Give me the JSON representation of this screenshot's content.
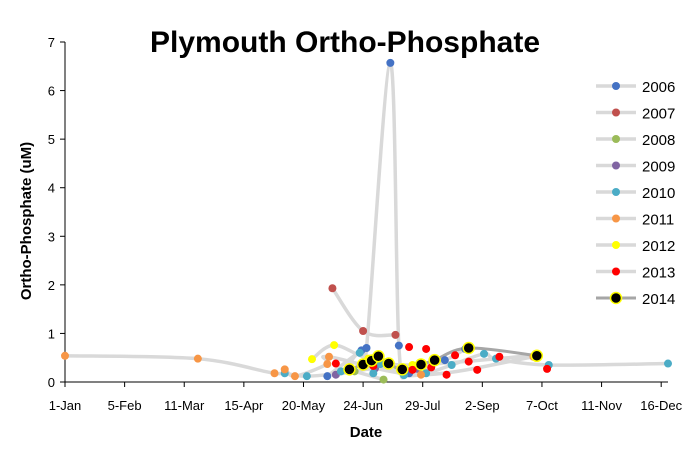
{
  "chart_data": {
    "type": "scatter",
    "title": "Plymouth Ortho-Phosphate",
    "xlabel": "Date",
    "ylabel": "Ortho-Phosphate (uM)",
    "x_axis": {
      "unit": "day-of-year",
      "range": [
        1,
        355
      ],
      "tick_values": [
        1,
        36,
        71,
        106,
        141,
        176,
        211,
        246,
        281,
        316,
        351
      ],
      "tick_labels": [
        "1-Jan",
        "5-Feb",
        "11-Mar",
        "15-Apr",
        "20-May",
        "24-Jun",
        "29-Jul",
        "2-Sep",
        "7-Oct",
        "11-Nov",
        "16-Dec"
      ]
    },
    "y_axis": {
      "range": [
        0,
        7
      ],
      "ticks": [
        0,
        1,
        2,
        3,
        4,
        5,
        6,
        7
      ]
    },
    "grid": false,
    "legend_position": "right",
    "series": [
      {
        "name": "2006",
        "color": "#4472C4",
        "line_color": "#D9D9D9",
        "points": [
          [
            155,
            0.12
          ],
          [
            175,
            0.65
          ],
          [
            178,
            0.7
          ],
          [
            192,
            6.57
          ],
          [
            197,
            0.75
          ],
          [
            203,
            0.18
          ],
          [
            224,
            0.45
          ],
          [
            236,
            0.68
          ]
        ]
      },
      {
        "name": "2007",
        "color": "#C0504D",
        "line_color": "#D9D9D9",
        "points": [
          [
            158,
            1.93
          ],
          [
            176,
            1.05
          ],
          [
            195,
            0.97
          ]
        ]
      },
      {
        "name": "2008",
        "color": "#9BBB59",
        "line_color": "#D9D9D9",
        "points": [
          [
            171,
            0.22
          ],
          [
            188,
            0.05
          ]
        ]
      },
      {
        "name": "2009",
        "color": "#8064A2",
        "line_color": "#D9D9D9",
        "points": [
          [
            160,
            0.15
          ],
          [
            183,
            0.28
          ],
          [
            208,
            0.27
          ]
        ]
      },
      {
        "name": "2010",
        "color": "#4BACC6",
        "line_color": "#D9D9D9",
        "points": [
          [
            130,
            0.18
          ],
          [
            143,
            0.12
          ],
          [
            163,
            0.22
          ],
          [
            174,
            0.6
          ],
          [
            182,
            0.18
          ],
          [
            186,
            0.37
          ],
          [
            200,
            0.14
          ],
          [
            213,
            0.18
          ],
          [
            228,
            0.35
          ],
          [
            247,
            0.58
          ],
          [
            254,
            0.48
          ],
          [
            285,
            0.35
          ],
          [
            355,
            0.38
          ]
        ]
      },
      {
        "name": "2011",
        "color": "#F79646",
        "line_color": "#D9D9D9",
        "points": [
          [
            1,
            0.54
          ],
          [
            79,
            0.48
          ],
          [
            124,
            0.18
          ],
          [
            130,
            0.26
          ],
          [
            136,
            0.12
          ],
          [
            155,
            0.37
          ],
          [
            156,
            0.52
          ],
          [
            210,
            0.15
          ],
          [
            276,
            0.52
          ]
        ]
      },
      {
        "name": "2012",
        "color": "#FFFF00",
        "line_color": "#D9D9D9",
        "points": [
          [
            146,
            0.47
          ],
          [
            159,
            0.76
          ],
          [
            179,
            0.48
          ],
          [
            205,
            0.35
          ],
          [
            277,
            0.55
          ]
        ]
      },
      {
        "name": "2013",
        "color": "#FF0000",
        "line_color": null,
        "points": [
          [
            160,
            0.38
          ],
          [
            179,
            0.4
          ],
          [
            182,
            0.33
          ],
          [
            203,
            0.72
          ],
          [
            205,
            0.25
          ],
          [
            213,
            0.68
          ],
          [
            216,
            0.3
          ],
          [
            225,
            0.15
          ],
          [
            230,
            0.55
          ],
          [
            238,
            0.42
          ],
          [
            243,
            0.25
          ],
          [
            256,
            0.52
          ],
          [
            284,
            0.27
          ]
        ]
      },
      {
        "name": "2014",
        "color": "#000000",
        "line_color": "#A6A6A6",
        "points": [
          [
            168,
            0.26
          ],
          [
            176,
            0.36
          ],
          [
            181,
            0.44
          ],
          [
            185,
            0.53
          ],
          [
            191,
            0.38
          ],
          [
            199,
            0.26
          ],
          [
            210,
            0.36
          ],
          [
            218,
            0.45
          ],
          [
            238,
            0.7
          ],
          [
            278,
            0.54
          ]
        ]
      }
    ]
  }
}
